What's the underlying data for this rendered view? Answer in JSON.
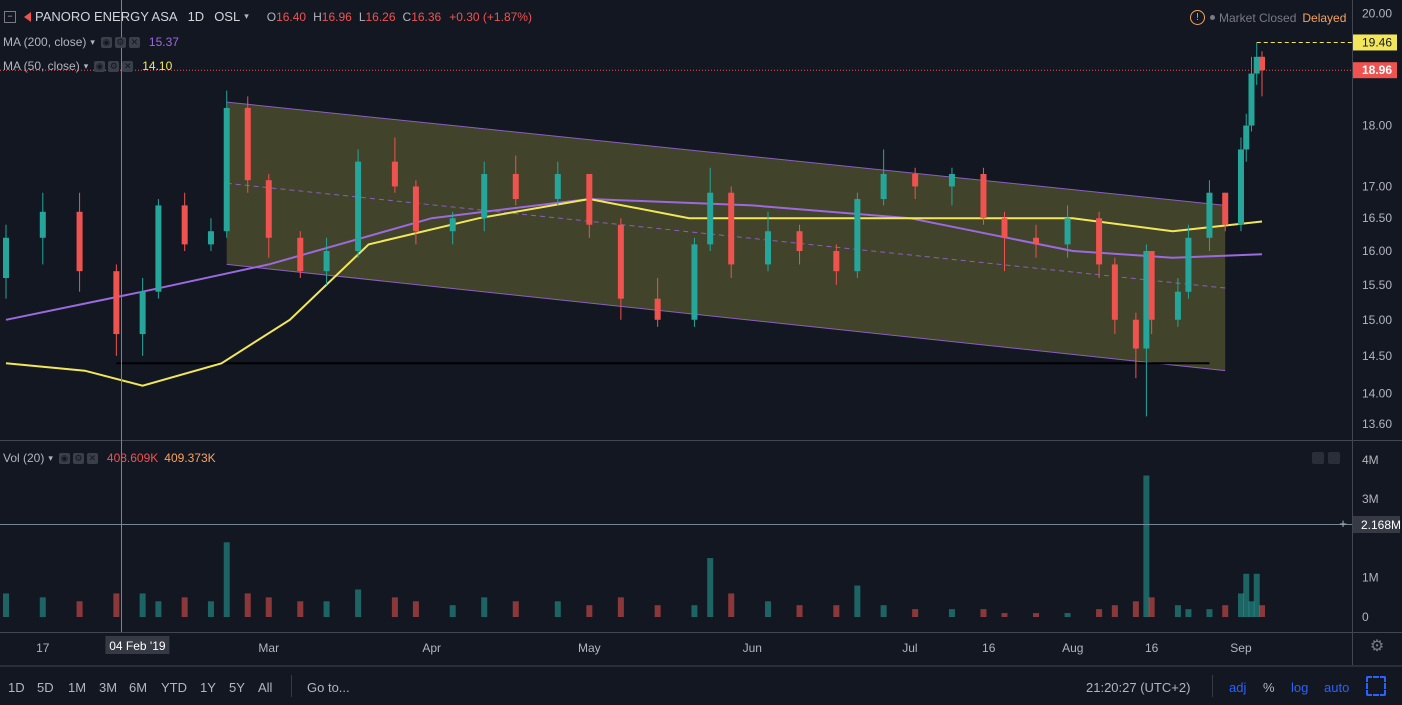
{
  "header": {
    "symbol": "PANORO ENERGY ASA",
    "interval": "1D",
    "exchange": "OSL",
    "open_label": "O",
    "open": "16.40",
    "high_label": "H",
    "high": "16.96",
    "low_label": "L",
    "low": "16.26",
    "close_label": "C",
    "close": "16.36",
    "change": "+0.30 (+1.87%)",
    "market_status": "Market Closed",
    "delay": "Delayed"
  },
  "indicators": {
    "ma200": {
      "label": "MA (200, close)",
      "value": "15.37",
      "color": "#9c6ade"
    },
    "ma50": {
      "label": "MA (50, close)",
      "value": "14.10",
      "color": "#f2e75a"
    },
    "vol": {
      "label": "Vol (20)",
      "value1": "408.609K",
      "value2": "409.373K"
    }
  },
  "price_axis": {
    "ticks": [
      "20.00",
      "18.00",
      "17.00",
      "16.50",
      "16.00",
      "15.50",
      "15.00",
      "14.50",
      "14.00",
      "13.60"
    ],
    "marker_high": "19.46",
    "marker_last": "18.96"
  },
  "volume_axis": {
    "ticks": [
      "4M",
      "3M",
      "1M",
      "0"
    ],
    "crosshair_value": "2.168M"
  },
  "time_axis": {
    "labels": [
      "17",
      "04 Feb '19",
      "Mar",
      "Apr",
      "May",
      "Jun",
      "Jul",
      "16",
      "Aug",
      "16",
      "Sep"
    ]
  },
  "bottom_bar": {
    "ranges": [
      "1D",
      "5D",
      "1M",
      "3M",
      "6M",
      "YTD",
      "1Y",
      "5Y",
      "All"
    ],
    "goto": "Go to...",
    "time": "21:20:27 (UTC+2)",
    "adj": "adj",
    "pct": "%",
    "log": "log",
    "auto": "auto"
  },
  "colors": {
    "up": "#26a69a",
    "down": "#ef5350",
    "channel_fill": "#4a4b2c",
    "channel_line": "#8b5fbf",
    "background": "#131722",
    "accent": "#2962ff"
  },
  "chart_data": {
    "type": "candlestick",
    "title": "PANORO ENERGY ASA, 1D, OSL",
    "y_scale": "log",
    "ylim": [
      13.5,
      20.1
    ],
    "x_range": [
      "2019-01-10",
      "2019-09-06"
    ],
    "candles": [
      {
        "date": "2019-01-10",
        "o": 15.6,
        "h": 16.4,
        "l": 15.3,
        "c": 16.2
      },
      {
        "date": "2019-01-17",
        "o": 16.2,
        "h": 16.9,
        "l": 15.8,
        "c": 16.6
      },
      {
        "date": "2019-01-24",
        "o": 16.6,
        "h": 16.9,
        "l": 15.4,
        "c": 15.7
      },
      {
        "date": "2019-01-31",
        "o": 15.7,
        "h": 15.8,
        "l": 14.5,
        "c": 14.8
      },
      {
        "date": "2019-02-05",
        "o": 14.8,
        "h": 15.6,
        "l": 14.5,
        "c": 15.4
      },
      {
        "date": "2019-02-08",
        "o": 15.4,
        "h": 16.8,
        "l": 15.3,
        "c": 16.7
      },
      {
        "date": "2019-02-13",
        "o": 16.7,
        "h": 16.9,
        "l": 16.0,
        "c": 16.1
      },
      {
        "date": "2019-02-18",
        "o": 16.1,
        "h": 16.5,
        "l": 16.0,
        "c": 16.3
      },
      {
        "date": "2019-02-21",
        "o": 16.3,
        "h": 18.6,
        "l": 16.2,
        "c": 18.3
      },
      {
        "date": "2019-02-25",
        "o": 18.3,
        "h": 18.5,
        "l": 16.9,
        "c": 17.1
      },
      {
        "date": "2019-03-01",
        "o": 17.1,
        "h": 17.2,
        "l": 15.9,
        "c": 16.2
      },
      {
        "date": "2019-03-07",
        "o": 16.2,
        "h": 16.3,
        "l": 15.6,
        "c": 15.7
      },
      {
        "date": "2019-03-12",
        "o": 15.7,
        "h": 16.2,
        "l": 15.5,
        "c": 16.0
      },
      {
        "date": "2019-03-18",
        "o": 16.0,
        "h": 17.6,
        "l": 15.9,
        "c": 17.4
      },
      {
        "date": "2019-03-25",
        "o": 17.4,
        "h": 17.8,
        "l": 16.9,
        "c": 17.0
      },
      {
        "date": "2019-03-29",
        "o": 17.0,
        "h": 17.1,
        "l": 16.1,
        "c": 16.3
      },
      {
        "date": "2019-04-05",
        "o": 16.3,
        "h": 16.6,
        "l": 16.1,
        "c": 16.5
      },
      {
        "date": "2019-04-11",
        "o": 16.5,
        "h": 17.4,
        "l": 16.3,
        "c": 17.2
      },
      {
        "date": "2019-04-17",
        "o": 17.2,
        "h": 17.5,
        "l": 16.7,
        "c": 16.8
      },
      {
        "date": "2019-04-25",
        "o": 16.8,
        "h": 17.4,
        "l": 16.7,
        "c": 17.2
      },
      {
        "date": "2019-05-01",
        "o": 17.2,
        "h": 17.2,
        "l": 16.2,
        "c": 16.4
      },
      {
        "date": "2019-05-07",
        "o": 16.4,
        "h": 16.5,
        "l": 15.0,
        "c": 15.3
      },
      {
        "date": "2019-05-14",
        "o": 15.3,
        "h": 15.6,
        "l": 14.9,
        "c": 15.0
      },
      {
        "date": "2019-05-21",
        "o": 15.0,
        "h": 16.2,
        "l": 14.9,
        "c": 16.1
      },
      {
        "date": "2019-05-24",
        "o": 16.1,
        "h": 17.3,
        "l": 16.0,
        "c": 16.9
      },
      {
        "date": "2019-05-28",
        "o": 16.9,
        "h": 17.0,
        "l": 15.6,
        "c": 15.8
      },
      {
        "date": "2019-06-04",
        "o": 15.8,
        "h": 16.6,
        "l": 15.7,
        "c": 16.3
      },
      {
        "date": "2019-06-10",
        "o": 16.3,
        "h": 16.4,
        "l": 15.8,
        "c": 16.0
      },
      {
        "date": "2019-06-17",
        "o": 16.0,
        "h": 16.1,
        "l": 15.5,
        "c": 15.7
      },
      {
        "date": "2019-06-21",
        "o": 15.7,
        "h": 16.9,
        "l": 15.6,
        "c": 16.8
      },
      {
        "date": "2019-06-26",
        "o": 16.8,
        "h": 17.6,
        "l": 16.7,
        "c": 17.2
      },
      {
        "date": "2019-07-02",
        "o": 17.2,
        "h": 17.3,
        "l": 16.8,
        "c": 17.0
      },
      {
        "date": "2019-07-09",
        "o": 17.0,
        "h": 17.3,
        "l": 16.7,
        "c": 17.2
      },
      {
        "date": "2019-07-15",
        "o": 17.2,
        "h": 17.3,
        "l": 16.4,
        "c": 16.5
      },
      {
        "date": "2019-07-19",
        "o": 16.5,
        "h": 16.6,
        "l": 15.7,
        "c": 16.2
      },
      {
        "date": "2019-07-25",
        "o": 16.2,
        "h": 16.4,
        "l": 15.9,
        "c": 16.1
      },
      {
        "date": "2019-07-31",
        "o": 16.1,
        "h": 16.7,
        "l": 15.9,
        "c": 16.5
      },
      {
        "date": "2019-08-06",
        "o": 16.5,
        "h": 16.6,
        "l": 15.6,
        "c": 15.8
      },
      {
        "date": "2019-08-09",
        "o": 15.8,
        "h": 15.9,
        "l": 14.8,
        "c": 15.0
      },
      {
        "date": "2019-08-13",
        "o": 15.0,
        "h": 15.1,
        "l": 14.2,
        "c": 14.6
      },
      {
        "date": "2019-08-15",
        "o": 14.6,
        "h": 16.1,
        "l": 13.7,
        "c": 16.0
      },
      {
        "date": "2019-08-16",
        "o": 16.0,
        "h": 16.0,
        "l": 14.8,
        "c": 15.0
      },
      {
        "date": "2019-08-21",
        "o": 15.0,
        "h": 15.6,
        "l": 14.9,
        "c": 15.4
      },
      {
        "date": "2019-08-23",
        "o": 15.4,
        "h": 16.4,
        "l": 15.3,
        "c": 16.2
      },
      {
        "date": "2019-08-27",
        "o": 16.2,
        "h": 17.1,
        "l": 16.0,
        "c": 16.9
      },
      {
        "date": "2019-08-30",
        "o": 16.9,
        "h": 16.9,
        "l": 16.3,
        "c": 16.4
      },
      {
        "date": "2019-09-02",
        "o": 16.4,
        "h": 17.8,
        "l": 16.3,
        "c": 17.6
      },
      {
        "date": "2019-09-03",
        "o": 17.6,
        "h": 18.2,
        "l": 17.4,
        "c": 18.0
      },
      {
        "date": "2019-09-04",
        "o": 18.0,
        "h": 19.2,
        "l": 17.9,
        "c": 18.9
      },
      {
        "date": "2019-09-05",
        "o": 18.9,
        "h": 19.46,
        "l": 18.7,
        "c": 19.2
      },
      {
        "date": "2019-09-06",
        "o": 19.2,
        "h": 19.3,
        "l": 18.5,
        "c": 18.96
      }
    ],
    "volume": [
      {
        "date": "2019-01-10",
        "v": 0.6
      },
      {
        "date": "2019-01-17",
        "v": 0.5
      },
      {
        "date": "2019-01-24",
        "v": 0.4
      },
      {
        "date": "2019-01-31",
        "v": 0.6
      },
      {
        "date": "2019-02-05",
        "v": 0.6
      },
      {
        "date": "2019-02-08",
        "v": 0.4
      },
      {
        "date": "2019-02-13",
        "v": 0.5
      },
      {
        "date": "2019-02-18",
        "v": 0.4
      },
      {
        "date": "2019-02-21",
        "v": 1.9
      },
      {
        "date": "2019-02-25",
        "v": 0.6
      },
      {
        "date": "2019-03-01",
        "v": 0.5
      },
      {
        "date": "2019-03-07",
        "v": 0.4
      },
      {
        "date": "2019-03-12",
        "v": 0.4
      },
      {
        "date": "2019-03-18",
        "v": 0.7
      },
      {
        "date": "2019-03-25",
        "v": 0.5
      },
      {
        "date": "2019-03-29",
        "v": 0.4
      },
      {
        "date": "2019-04-05",
        "v": 0.3
      },
      {
        "date": "2019-04-11",
        "v": 0.5
      },
      {
        "date": "2019-04-17",
        "v": 0.4
      },
      {
        "date": "2019-04-25",
        "v": 0.4
      },
      {
        "date": "2019-05-01",
        "v": 0.3
      },
      {
        "date": "2019-05-07",
        "v": 0.5
      },
      {
        "date": "2019-05-14",
        "v": 0.3
      },
      {
        "date": "2019-05-21",
        "v": 0.3
      },
      {
        "date": "2019-05-24",
        "v": 1.5
      },
      {
        "date": "2019-05-28",
        "v": 0.6
      },
      {
        "date": "2019-06-04",
        "v": 0.4
      },
      {
        "date": "2019-06-10",
        "v": 0.3
      },
      {
        "date": "2019-06-17",
        "v": 0.3
      },
      {
        "date": "2019-06-21",
        "v": 0.8
      },
      {
        "date": "2019-06-26",
        "v": 0.3
      },
      {
        "date": "2019-07-02",
        "v": 0.2
      },
      {
        "date": "2019-07-09",
        "v": 0.2
      },
      {
        "date": "2019-07-15",
        "v": 0.2
      },
      {
        "date": "2019-07-19",
        "v": 0.1
      },
      {
        "date": "2019-07-25",
        "v": 0.1
      },
      {
        "date": "2019-07-31",
        "v": 0.1
      },
      {
        "date": "2019-08-06",
        "v": 0.2
      },
      {
        "date": "2019-08-09",
        "v": 0.3
      },
      {
        "date": "2019-08-13",
        "v": 0.4
      },
      {
        "date": "2019-08-15",
        "v": 3.6
      },
      {
        "date": "2019-08-16",
        "v": 0.5
      },
      {
        "date": "2019-08-21",
        "v": 0.3
      },
      {
        "date": "2019-08-23",
        "v": 0.2
      },
      {
        "date": "2019-08-27",
        "v": 0.2
      },
      {
        "date": "2019-08-30",
        "v": 0.3
      },
      {
        "date": "2019-09-02",
        "v": 0.6
      },
      {
        "date": "2019-09-03",
        "v": 1.1
      },
      {
        "date": "2019-09-04",
        "v": 0.4
      },
      {
        "date": "2019-09-05",
        "v": 1.1
      },
      {
        "date": "2019-09-06",
        "v": 0.3
      }
    ],
    "ma200_points": [
      {
        "date": "2019-01-10",
        "v": 15.0
      },
      {
        "date": "2019-02-05",
        "v": 15.4
      },
      {
        "date": "2019-03-01",
        "v": 15.8
      },
      {
        "date": "2019-04-01",
        "v": 16.5
      },
      {
        "date": "2019-05-01",
        "v": 16.8
      },
      {
        "date": "2019-06-01",
        "v": 16.7
      },
      {
        "date": "2019-07-01",
        "v": 16.5
      },
      {
        "date": "2019-08-01",
        "v": 16.0
      },
      {
        "date": "2019-08-20",
        "v": 15.9
      },
      {
        "date": "2019-09-06",
        "v": 15.95
      }
    ],
    "ma50_points": [
      {
        "date": "2019-01-10",
        "v": 14.4
      },
      {
        "date": "2019-01-25",
        "v": 14.3
      },
      {
        "date": "2019-02-05",
        "v": 14.1
      },
      {
        "date": "2019-02-20",
        "v": 14.4
      },
      {
        "date": "2019-03-05",
        "v": 15.0
      },
      {
        "date": "2019-03-20",
        "v": 16.1
      },
      {
        "date": "2019-04-10",
        "v": 16.5
      },
      {
        "date": "2019-05-01",
        "v": 16.8
      },
      {
        "date": "2019-05-20",
        "v": 16.5
      },
      {
        "date": "2019-06-15",
        "v": 16.5
      },
      {
        "date": "2019-07-15",
        "v": 16.5
      },
      {
        "date": "2019-08-01",
        "v": 16.5
      },
      {
        "date": "2019-08-20",
        "v": 16.3
      },
      {
        "date": "2019-09-06",
        "v": 16.45
      }
    ],
    "channel": {
      "upper": [
        {
          "date": "2019-02-21",
          "v": 18.4
        },
        {
          "date": "2019-08-30",
          "v": 16.7
        }
      ],
      "lower": [
        {
          "date": "2019-02-21",
          "v": 15.8
        },
        {
          "date": "2019-08-30",
          "v": 14.3
        }
      ]
    },
    "support_line": {
      "from": "2019-01-31",
      "to": "2019-08-27",
      "v": 14.4
    },
    "crosshair_date": "2019-02-04",
    "crosshair_volume": 2.168
  }
}
